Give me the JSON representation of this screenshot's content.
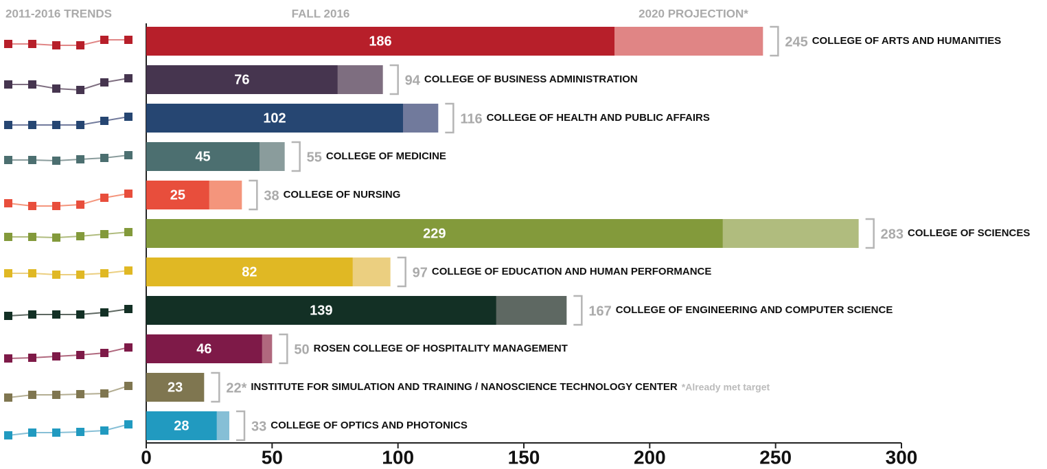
{
  "chart_data": {
    "type": "bar",
    "orientation": "horizontal",
    "categories": [
      "COLLEGE OF ARTS AND HUMANITIES",
      "COLLEGE OF BUSINESS ADMINISTRATION",
      "COLLEGE OF HEALTH AND PUBLIC AFFAIRS",
      "COLLEGE OF MEDICINE",
      "COLLEGE OF NURSING",
      "COLLEGE OF SCIENCES",
      "COLLEGE OF EDUCATION AND HUMAN PERFORMANCE",
      "COLLEGE OF ENGINEERING AND COMPUTER SCIENCE",
      "ROSEN COLLEGE OF HOSPITALITY MANAGEMENT",
      "INSTITUTE FOR SIMULATION AND TRAINING / NANOSCIENCE TECHNOLOGY CENTER",
      "COLLEGE OF OPTICS AND PHOTONICS"
    ],
    "series": [
      {
        "name": "FALL 2016",
        "values": [
          186,
          76,
          102,
          45,
          25,
          229,
          82,
          139,
          46,
          23,
          28
        ],
        "colors": [
          "#b71f2a",
          "#46354f",
          "#264672",
          "#4c6f70",
          "#e84e3c",
          "#839a3b",
          "#e0b824",
          "#133025",
          "#7e1a48",
          "#7f7650",
          "#219ac0"
        ]
      },
      {
        "name": "2020 PROJECTION*",
        "values": [
          245,
          94,
          116,
          55,
          38,
          283,
          97,
          167,
          50,
          22,
          33
        ],
        "value_labels": [
          "245",
          "94",
          "116",
          "55",
          "38",
          "283",
          "97",
          "167",
          "50",
          "22*",
          "33"
        ],
        "colors": [
          "#e08585",
          "#7e6e80",
          "#717a9c",
          "#8a9c9c",
          "#f4957c",
          "#b0bc7e",
          "#ebcf80",
          "#5e6862",
          "#b0687e",
          "#b3ad92",
          "#86bfd6"
        ]
      }
    ],
    "trends": {
      "name": "2011-2016 TRENDS",
      "values": [
        [
          180,
          180,
          178,
          178,
          186,
          186
        ],
        [
          67,
          67,
          61,
          59,
          70,
          76
        ],
        [
          90,
          90,
          90,
          90,
          96,
          102
        ],
        [
          38,
          38,
          37,
          39,
          41,
          45
        ],
        [
          11,
          7,
          7,
          9,
          19,
          25
        ],
        [
          222,
          222,
          221,
          223,
          226,
          229
        ],
        [
          78,
          78,
          76,
          76,
          78,
          82
        ],
        [
          129,
          131,
          131,
          131,
          134,
          139
        ],
        [
          30,
          31,
          33,
          35,
          38,
          46
        ],
        [
          6,
          10,
          10,
          11,
          12,
          23
        ],
        [
          12,
          16,
          16,
          17,
          19,
          28
        ]
      ]
    },
    "note": "*Already met target",
    "xlim": [
      0,
      300
    ],
    "xticks": [
      0,
      50,
      100,
      150,
      200,
      250,
      300
    ]
  }
}
